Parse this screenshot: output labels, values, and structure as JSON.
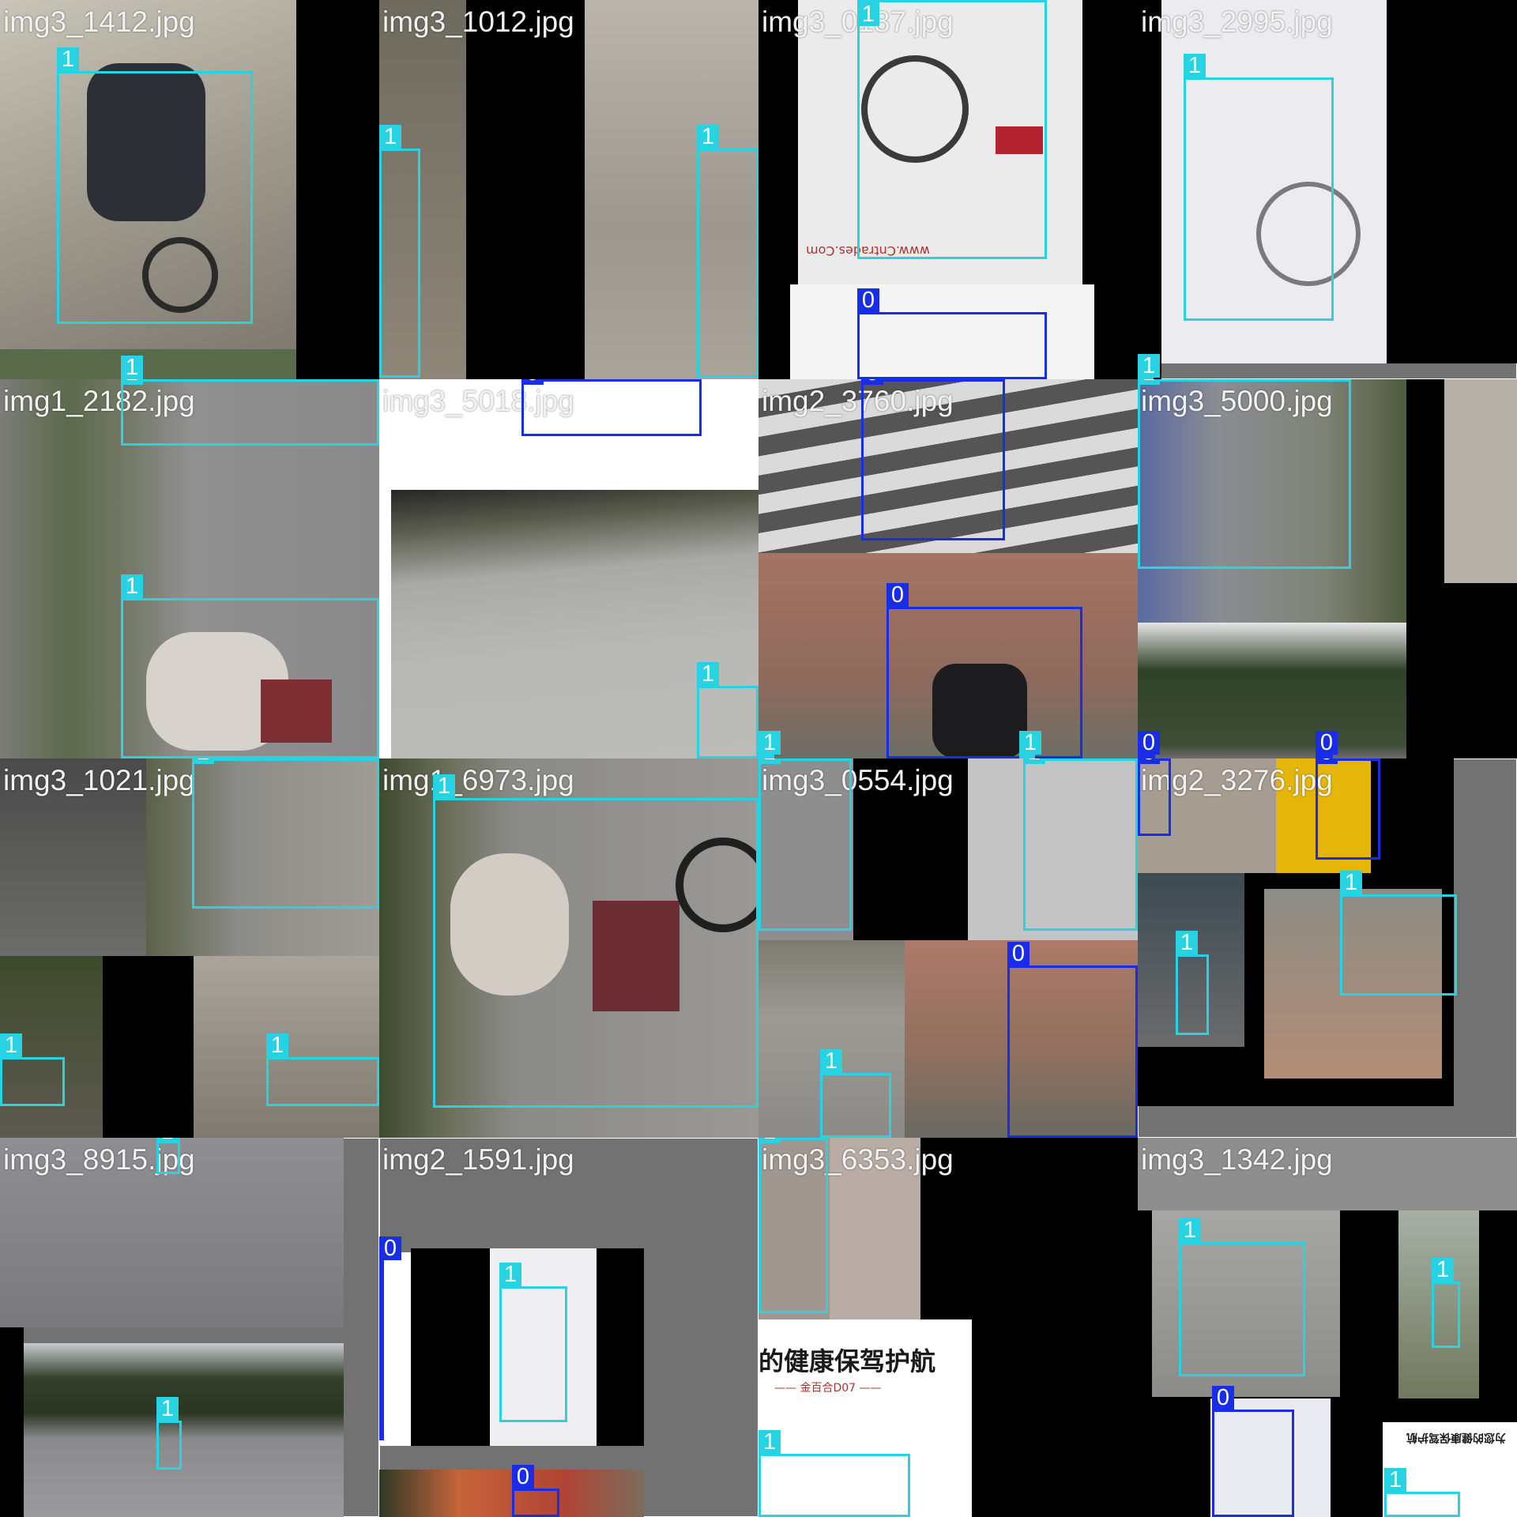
{
  "grid": {
    "tiles": [
      {
        "filename": "img3_1412.jpg"
      },
      {
        "filename": "img3_1012.jpg"
      },
      {
        "filename": "img3_0187.jpg"
      },
      {
        "filename": "img3_2995.jpg"
      },
      {
        "filename": "img1_2182.jpg"
      },
      {
        "filename": "img3_5018.jpg"
      },
      {
        "filename": "img2_3760.jpg"
      },
      {
        "filename": "img3_5000.jpg"
      },
      {
        "filename": "img3_1021.jpg"
      },
      {
        "filename": "img1_6973.jpg"
      },
      {
        "filename": "img3_0554.jpg"
      },
      {
        "filename": "img2_3276.jpg"
      },
      {
        "filename": "img3_8915.jpg"
      },
      {
        "filename": "img2_1591.jpg"
      },
      {
        "filename": "img3_6353.jpg"
      },
      {
        "filename": "img3_1342.jpg"
      }
    ]
  },
  "class_labels": {
    "person": "0",
    "wheelchair": "1"
  },
  "colors": {
    "class_1": "#27d3e2",
    "class_0": "#1a2de6"
  },
  "embedded_text": {
    "ad_banner": "的健康保驾护航",
    "ad_model": "—— 金百合D07 ——",
    "ad_small": "为您的健康保驾护航",
    "watermark": "www.Cntrades.Com"
  }
}
